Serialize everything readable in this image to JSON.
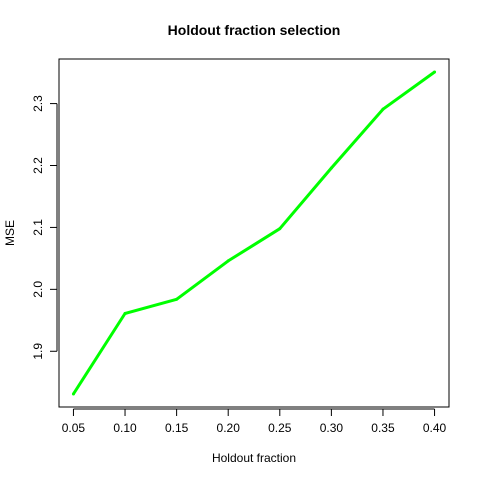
{
  "chart_data": {
    "type": "line",
    "title": "Holdout fraction selection",
    "xlabel": "Holdout fraction",
    "ylabel": "MSE",
    "x": [
      0.05,
      0.1,
      0.15,
      0.2,
      0.25,
      0.3,
      0.35,
      0.4
    ],
    "series": [
      {
        "color": "#00ff00",
        "values": [
          1.831,
          1.961,
          1.984,
          2.046,
          2.098,
          2.196,
          2.291,
          2.351
        ]
      }
    ],
    "xlim": [
      0.036,
      0.414
    ],
    "ylim": [
      1.81,
      2.372
    ],
    "xticks": [
      0.05,
      0.1,
      0.15,
      0.2,
      0.25,
      0.3,
      0.35,
      0.4
    ],
    "xtick_labels": [
      "0.05",
      "0.10",
      "0.15",
      "0.20",
      "0.25",
      "0.30",
      "0.35",
      "0.40"
    ],
    "yticks": [
      1.9,
      2.0,
      2.1,
      2.2,
      2.3
    ],
    "ytick_labels": [
      "1.9",
      "2.0",
      "2.1",
      "2.2",
      "2.3"
    ],
    "grid": false,
    "legend": "none"
  }
}
